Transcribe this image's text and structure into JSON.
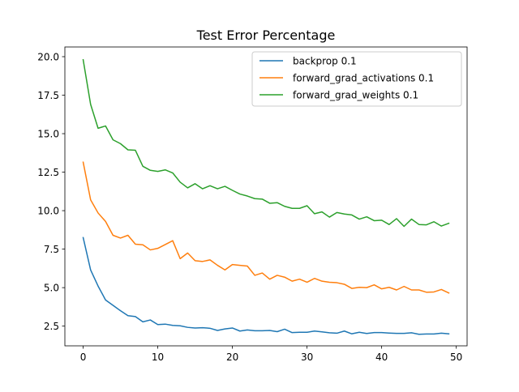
{
  "chart_data": {
    "type": "line",
    "title": "Test Error Percentage",
    "xlabel": "",
    "ylabel": "",
    "xlim": [
      -2.45,
      51.45
    ],
    "ylim": [
      1.22,
      20.63
    ],
    "xticks": [
      0,
      10,
      20,
      30,
      40,
      50
    ],
    "yticks": [
      2.5,
      5.0,
      7.5,
      10.0,
      12.5,
      15.0,
      17.5,
      20.0
    ],
    "ytick_labels": [
      "2.5",
      "5.0",
      "7.5",
      "10.0",
      "12.5",
      "15.0",
      "17.5",
      "20.0"
    ],
    "xtick_labels": [
      "0",
      "10",
      "20",
      "30",
      "40",
      "50"
    ],
    "grid": false,
    "legend_position": "top-right",
    "x": [
      0,
      1,
      2,
      3,
      4,
      5,
      6,
      7,
      8,
      9,
      10,
      11,
      12,
      13,
      14,
      15,
      16,
      17,
      18,
      19,
      20,
      21,
      22,
      23,
      24,
      25,
      26,
      27,
      28,
      29,
      30,
      31,
      32,
      33,
      34,
      35,
      36,
      37,
      38,
      39,
      40,
      41,
      42,
      43,
      44,
      45,
      46,
      47,
      48,
      49
    ],
    "series": [
      {
        "name": "backprop 0.1",
        "color": "#1f77b4",
        "values": [
          8.25,
          6.15,
          5.1,
          4.2,
          3.85,
          3.5,
          3.18,
          3.12,
          2.78,
          2.9,
          2.6,
          2.63,
          2.55,
          2.52,
          2.42,
          2.38,
          2.4,
          2.36,
          2.22,
          2.32,
          2.38,
          2.18,
          2.25,
          2.2,
          2.2,
          2.22,
          2.14,
          2.3,
          2.08,
          2.1,
          2.1,
          2.18,
          2.13,
          2.07,
          2.04,
          2.18,
          2.0,
          2.1,
          2.02,
          2.08,
          2.08,
          2.05,
          2.03,
          2.03,
          2.07,
          1.97,
          1.99,
          1.99,
          2.04,
          2.0
        ]
      },
      {
        "name": "forward_grad_activations 0.1",
        "color": "#ff7f0e",
        "values": [
          13.15,
          10.7,
          9.85,
          9.3,
          8.4,
          8.22,
          8.4,
          7.82,
          7.78,
          7.45,
          7.55,
          7.8,
          8.05,
          6.88,
          7.25,
          6.75,
          6.7,
          6.8,
          6.45,
          6.15,
          6.5,
          6.45,
          6.4,
          5.8,
          5.95,
          5.55,
          5.8,
          5.68,
          5.42,
          5.55,
          5.35,
          5.6,
          5.42,
          5.35,
          5.32,
          5.22,
          4.95,
          5.02,
          5.0,
          5.18,
          4.92,
          5.02,
          4.85,
          5.08,
          4.85,
          4.85,
          4.7,
          4.72,
          4.88,
          4.65
        ]
      },
      {
        "name": "forward_grad_weights 0.1",
        "color": "#2ca02c",
        "values": [
          19.8,
          16.9,
          15.35,
          15.5,
          14.6,
          14.35,
          13.95,
          13.92,
          12.88,
          12.62,
          12.55,
          12.65,
          12.45,
          11.85,
          11.48,
          11.75,
          11.42,
          11.62,
          11.42,
          11.58,
          11.32,
          11.08,
          10.95,
          10.78,
          10.75,
          10.48,
          10.52,
          10.28,
          10.15,
          10.15,
          10.32,
          9.8,
          9.92,
          9.58,
          9.88,
          9.78,
          9.72,
          9.45,
          9.6,
          9.35,
          9.38,
          9.1,
          9.48,
          8.98,
          9.45,
          9.1,
          9.08,
          9.28,
          9.0,
          9.18
        ]
      }
    ]
  }
}
